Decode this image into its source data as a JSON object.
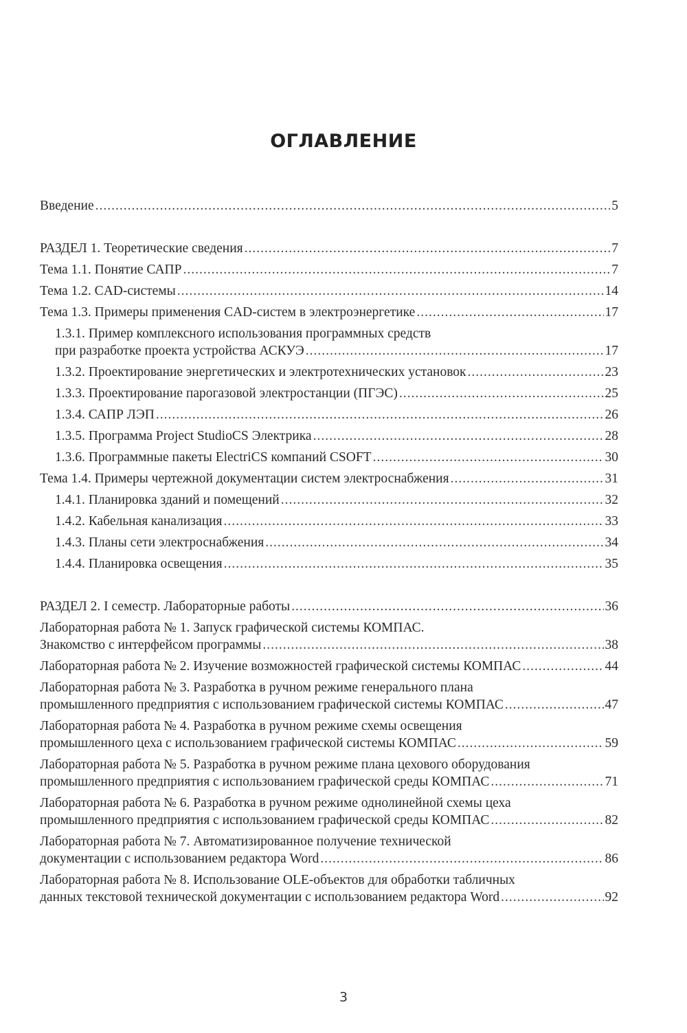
{
  "title": "ОГЛАВЛЕНИЕ",
  "page_number": "3",
  "entries": [
    {
      "level": 0,
      "gap": false,
      "lines": [
        "Введение"
      ],
      "page": "5"
    },
    {
      "level": 0,
      "gap": true,
      "lines": [
        "РАЗДЕЛ 1. Теоретические сведения"
      ],
      "page": "7"
    },
    {
      "level": 0,
      "gap": false,
      "lines": [
        "Тема 1.1. Понятие САПР"
      ],
      "page": "7"
    },
    {
      "level": 0,
      "gap": false,
      "lines": [
        "Тема 1.2. CAD-системы"
      ],
      "page": "14"
    },
    {
      "level": 0,
      "gap": false,
      "lines": [
        "Тема 1.3. Примеры применения CAD-систем в электроэнергетике"
      ],
      "page": "17"
    },
    {
      "level": 1,
      "gap": false,
      "lines": [
        "1.3.1. Пример комплексного использования программных средств",
        "при разработке проекта устройства АСКУЭ"
      ],
      "page": "17"
    },
    {
      "level": 1,
      "gap": false,
      "lines": [
        "1.3.2. Проектирование энергетических и электротехнических установок"
      ],
      "page": "23"
    },
    {
      "level": 1,
      "gap": false,
      "lines": [
        "1.3.3. Проектирование парогазовой электростанции (ПГЭС)"
      ],
      "page": "25"
    },
    {
      "level": 1,
      "gap": false,
      "lines": [
        "1.3.4. САПР ЛЭП"
      ],
      "page": "26"
    },
    {
      "level": 1,
      "gap": false,
      "lines": [
        "1.3.5. Программа Project StudioCS Электрика"
      ],
      "page": "28"
    },
    {
      "level": 1,
      "gap": false,
      "lines": [
        "1.3.6. Программные пакеты ElectriCS компаний CSOFT"
      ],
      "page": "30"
    },
    {
      "level": 0,
      "gap": false,
      "lines": [
        "Тема 1.4. Примеры чертежной документации систем электроснабжения"
      ],
      "page": "31"
    },
    {
      "level": 1,
      "gap": false,
      "lines": [
        "1.4.1. Планировка зданий и помещений"
      ],
      "page": "32"
    },
    {
      "level": 1,
      "gap": false,
      "lines": [
        "1.4.2. Кабельная канализация"
      ],
      "page": "33"
    },
    {
      "level": 1,
      "gap": false,
      "lines": [
        "1.4.3. Планы сети электроснабжения"
      ],
      "page": "34"
    },
    {
      "level": 1,
      "gap": false,
      "lines": [
        "1.4.4. Планировка освещения"
      ],
      "page": "35"
    },
    {
      "level": 0,
      "gap": true,
      "lines": [
        "РАЗДЕЛ 2. I семестр. Лабораторные работы"
      ],
      "page": "36"
    },
    {
      "level": 0,
      "gap": false,
      "lines": [
        "Лабораторная работа № 1. Запуск графической системы КОМПАС.",
        "Знакомство с интерфейсом программы"
      ],
      "page": "38"
    },
    {
      "level": 0,
      "gap": false,
      "lines": [
        "Лабораторная работа № 2. Изучение возможностей графической системы КОМПАС"
      ],
      "page": "44"
    },
    {
      "level": 0,
      "gap": false,
      "lines": [
        "Лабораторная работа № 3. Разработка в ручном режиме генерального плана",
        "промышленного предприятия с использованием графической системы КОМПАС"
      ],
      "page": "47"
    },
    {
      "level": 0,
      "gap": false,
      "lines": [
        "Лабораторная работа № 4. Разработка в ручном режиме схемы освещения",
        "промышленного цеха с использованием графической системы КОМПАС"
      ],
      "page": "59"
    },
    {
      "level": 0,
      "gap": false,
      "lines": [
        "Лабораторная работа № 5. Разработка в ручном режиме плана цехового оборудования",
        "промышленного предприятия с использованием графической среды КОМПАС"
      ],
      "page": "71"
    },
    {
      "level": 0,
      "gap": false,
      "lines": [
        "Лабораторная работа № 6. Разработка в ручном режиме однолинейной схемы цеха",
        "промышленного предприятия с использованием графической среды КОМПАС"
      ],
      "page": "82"
    },
    {
      "level": 0,
      "gap": false,
      "lines": [
        "Лабораторная работа № 7. Автоматизированное получение технической",
        "документации с использованием редактора Word"
      ],
      "page": "86"
    },
    {
      "level": 0,
      "gap": false,
      "lines": [
        "Лабораторная работа № 8. Использование OLE-объектов для обработки табличных",
        "данных текстовой технической документации с использованием редактора Word"
      ],
      "page": "92"
    }
  ]
}
